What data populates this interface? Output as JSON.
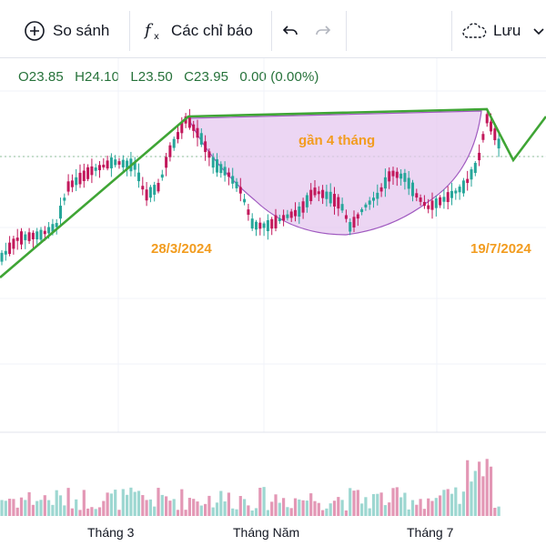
{
  "toolbar": {
    "compare_label": "So sánh",
    "indicators_label": "Các chỉ báo",
    "save_label": "Lưu"
  },
  "ohlc": {
    "open": "O23.85",
    "high": "H24.10",
    "low": "L23.50",
    "close": "C23.95",
    "change": "0.00 (0.00%)"
  },
  "annotations": {
    "duration": "gần 4 tháng",
    "start_date": "28/3/2024",
    "end_date": "19/7/2024"
  },
  "colors": {
    "up": "#26a69a",
    "down": "#c2185b",
    "trend": "#3fa535",
    "cup_fill": "#e6c8ef",
    "cup_line": "#a05ac0",
    "annotation": "#f29c1f"
  },
  "chart_data": {
    "type": "candlestick",
    "x_tick_labels": [
      "Tháng 3",
      "Tháng Năm",
      "Tháng 7"
    ],
    "last_ohlc": {
      "open": 23.85,
      "high": 24.1,
      "low": 23.5,
      "close": 23.95
    }
  }
}
